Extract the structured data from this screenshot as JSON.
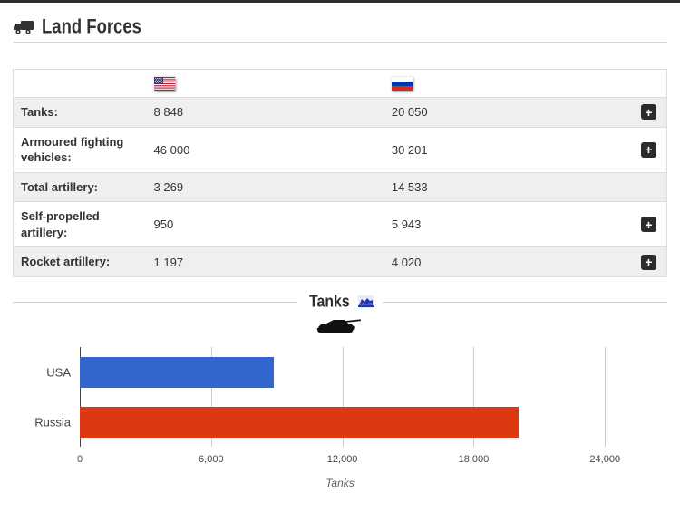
{
  "header": {
    "title": "Land Forces",
    "icon": "truck-icon"
  },
  "comparison_table": {
    "country_columns": [
      {
        "name": "USA",
        "flag_icon": "usa-flag-icon"
      },
      {
        "name": "Russia",
        "flag_icon": "russia-flag-icon"
      }
    ],
    "expand_symbol": "+",
    "rows": [
      {
        "label": "Tanks:",
        "usa": "8 848",
        "russia": "20 050",
        "expandable": true
      },
      {
        "label": "Armoured fighting vehicles:",
        "usa": "46 000",
        "russia": "30 201",
        "expandable": true
      },
      {
        "label": "Total artillery:",
        "usa": "3 269",
        "russia": "14 533",
        "expandable": false
      },
      {
        "label": "Self-propelled artillery:",
        "usa": "950",
        "russia": "5 943",
        "expandable": true
      },
      {
        "label": "Rocket artillery:",
        "usa": "1 197",
        "russia": "4 020",
        "expandable": true
      }
    ]
  },
  "chart_section": {
    "title": "Tanks",
    "title_icon": "area-chart-icon",
    "illustration": "tank-silhouette-icon"
  },
  "chart_data": {
    "type": "bar",
    "orientation": "horizontal",
    "title": "Tanks",
    "categories": [
      "USA",
      "Russia"
    ],
    "values": [
      8848,
      20050
    ],
    "series_colors": [
      "#3366CC",
      "#DC3912"
    ],
    "xlabel": "Tanks",
    "ylabel": "",
    "xlim": [
      0,
      26600
    ],
    "xticks": [
      0,
      6000,
      12000,
      18000,
      24000
    ],
    "xtick_labels": [
      "0",
      "6,000",
      "12,000",
      "18,000",
      "24,000"
    ],
    "grid": true,
    "legend": "none",
    "gridline_color": "#cccccc",
    "baseline_color": "#444444"
  },
  "colors": {
    "top_edge": "#2e2e2e",
    "row_stripe": "#efefef",
    "table_border": "#dddddd",
    "plus_button_bg": "#2b2b2b"
  }
}
